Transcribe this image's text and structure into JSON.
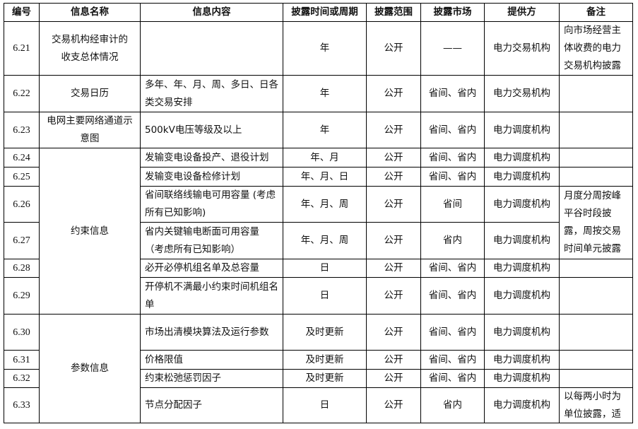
{
  "headers": [
    "编号",
    "信息名称",
    "信息内容",
    "披露时间或周期",
    "披露范围",
    "披露市场",
    "提供方",
    "备注"
  ],
  "rows": [
    {
      "id": "6.21",
      "name": "交易机构经审计的收支总体情况",
      "content": "",
      "period": "年",
      "scope": "公开",
      "market": "——",
      "provider": "电力交易机构",
      "remark": "向市场经营主体收费的电力交易机构披露"
    },
    {
      "id": "6.22",
      "name": "交易日历",
      "content": "多年、年、月、周、多日、日各类交易安排",
      "period": "年",
      "scope": "公开",
      "market": "省间、省内",
      "provider": "电力交易机构",
      "remark": ""
    },
    {
      "id": "6.23",
      "name": "电网主要网络通道示意图",
      "content": "500kV电压等级及以上",
      "period": "年",
      "scope": "公开",
      "market": "省间、省内",
      "provider": "电力调度机构",
      "remark": ""
    },
    {
      "id": "6.24",
      "name": "约束信息",
      "content": "发输变电设备投产、退役计划",
      "period": "年、月",
      "scope": "公开",
      "market": "省间、省内",
      "provider": "电力调度机构",
      "remark": ""
    },
    {
      "id": "6.25",
      "content": "发输变电设备检修计划",
      "period": "年、月、日",
      "scope": "公开",
      "market": "省间、省内",
      "provider": "电力调度机构",
      "remark": ""
    },
    {
      "id": "6.26",
      "content": "省间联络线输电可用容量 (考虑所有已知影响)",
      "period": "年、月、周",
      "scope": "公开",
      "market": "省间",
      "provider": "电力调度机构",
      "remark": "月度分周按峰平谷时段披露，周按交易时间单元披露"
    },
    {
      "id": "6.27",
      "content": "省内关键输电断面可用容量 （考虑所有已知影响）",
      "period": "年、月、周",
      "scope": "公开",
      "market": "省内",
      "provider": "电力调度机构"
    },
    {
      "id": "6.28",
      "content": "必开必停机组名单及总容量",
      "period": "日",
      "scope": "公开",
      "market": "省间、省内",
      "provider": "电力调度机构",
      "remark": ""
    },
    {
      "id": "6.29",
      "content": "开停机不满最小约束时间机组名单",
      "period": "日",
      "scope": "公开",
      "market": "省间、省内",
      "provider": "电力调度机构",
      "remark": ""
    },
    {
      "id": "6.30",
      "name": "参数信息",
      "content": "市场出清模块算法及运行参数",
      "period": "及时更新",
      "scope": "公开",
      "market": "省间、省内",
      "provider": "电力调度机构",
      "remark": ""
    },
    {
      "id": "6.31",
      "content": "价格限值",
      "period": "及时更新",
      "scope": "公开",
      "market": "省间、省内",
      "provider": "电力调度机构",
      "remark": ""
    },
    {
      "id": "6.32",
      "content": "约束松弛惩罚因子",
      "period": "及时更新",
      "scope": "公开",
      "market": "省间、省内",
      "provider": "电力调度机构",
      "remark": ""
    },
    {
      "id": "6.33",
      "content": "节点分配因子",
      "period": "日",
      "scope": "公开",
      "market": "省内",
      "provider": "电力调度机构",
      "remark": "以每两小时为单位披露，适"
    }
  ]
}
